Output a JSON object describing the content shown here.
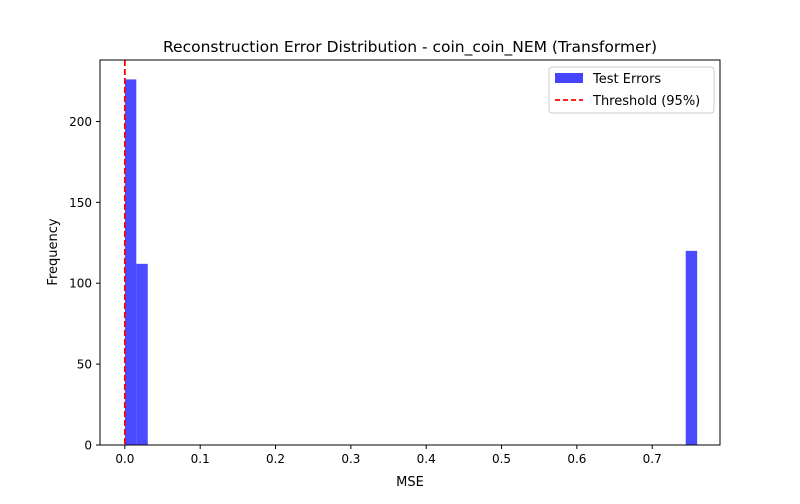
{
  "chart_data": {
    "type": "bar",
    "title": "Reconstruction Error Distribution - coin_coin_NEM (Transformer)",
    "xlabel": "MSE",
    "ylabel": "Frequency",
    "xlim": [
      -0.033,
      0.79
    ],
    "ylim": [
      0,
      238
    ],
    "xticks": [
      0.0,
      0.1,
      0.2,
      0.3,
      0.4,
      0.5,
      0.6,
      0.7
    ],
    "xtick_labels": [
      "0.0",
      "0.1",
      "0.2",
      "0.3",
      "0.4",
      "0.5",
      "0.6",
      "0.7"
    ],
    "yticks": [
      0,
      50,
      100,
      150,
      200
    ],
    "ytick_labels": [
      "0",
      "50",
      "100",
      "150",
      "200"
    ],
    "grid": false,
    "legend_position": "top-right",
    "series": [
      {
        "name": "Test Errors",
        "color": "#4444ff",
        "bins": [
          {
            "x0": 0.0,
            "x1": 0.0152,
            "count": 226
          },
          {
            "x0": 0.0152,
            "x1": 0.0304,
            "count": 112
          },
          {
            "x0": 0.7445,
            "x1": 0.7597,
            "count": 120
          }
        ]
      }
    ],
    "threshold": {
      "name": "Threshold (95%)",
      "value": 0.0,
      "color": "#ff0000",
      "style": "dashed"
    }
  }
}
